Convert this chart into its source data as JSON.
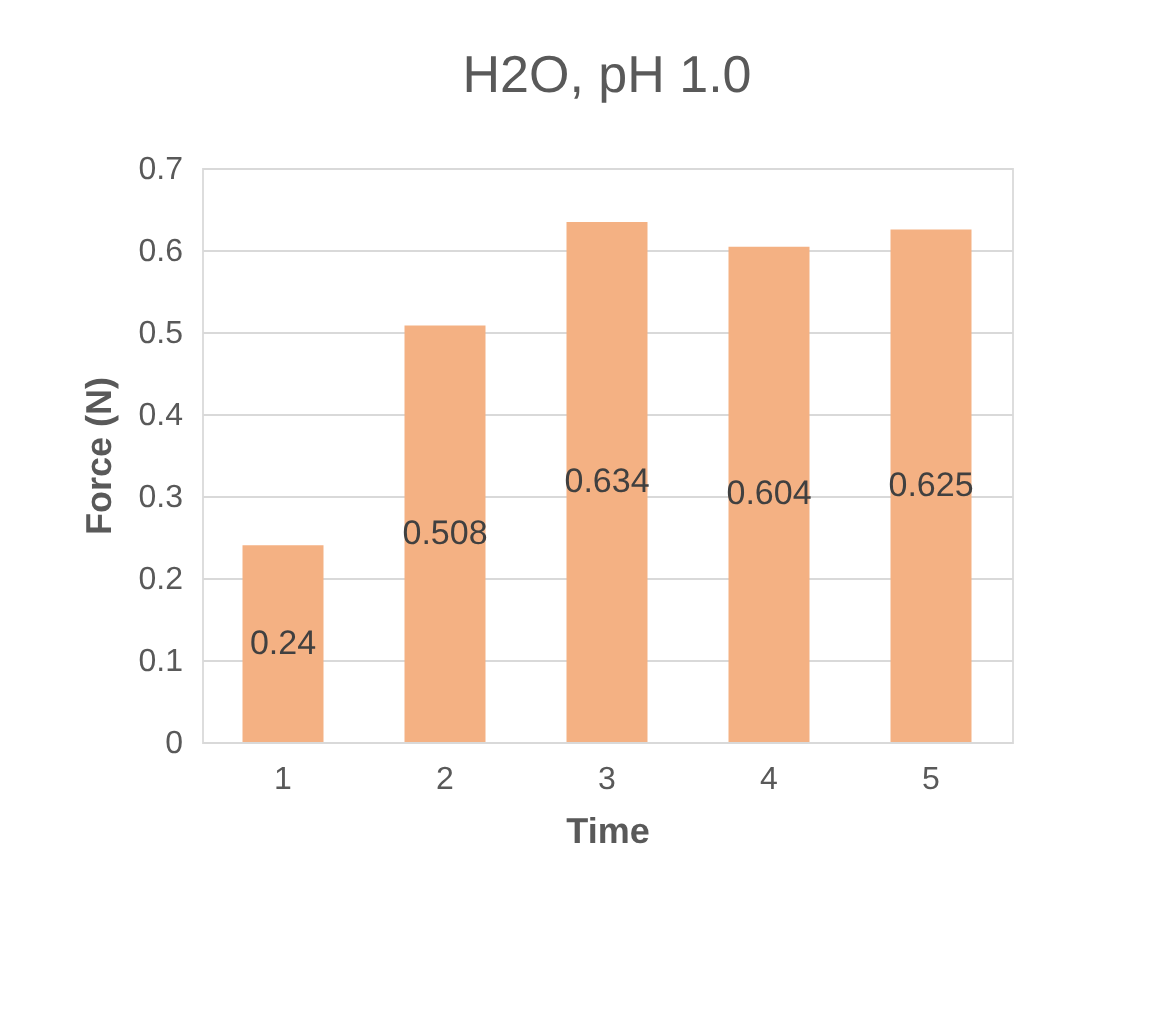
{
  "chart_data": {
    "type": "bar",
    "title": "H2O, pH 1.0",
    "xlabel": "Time",
    "ylabel": "Force (N)",
    "categories": [
      "1",
      "2",
      "3",
      "4",
      "5"
    ],
    "values": [
      0.24,
      0.508,
      0.634,
      0.604,
      0.625
    ],
    "color": "#f4b183",
    "ylim": [
      0,
      0.7
    ],
    "yticks": [
      0,
      0.1,
      0.2,
      0.3,
      0.4,
      0.5,
      0.6,
      0.7
    ],
    "grid": "y",
    "data_labels": true
  }
}
